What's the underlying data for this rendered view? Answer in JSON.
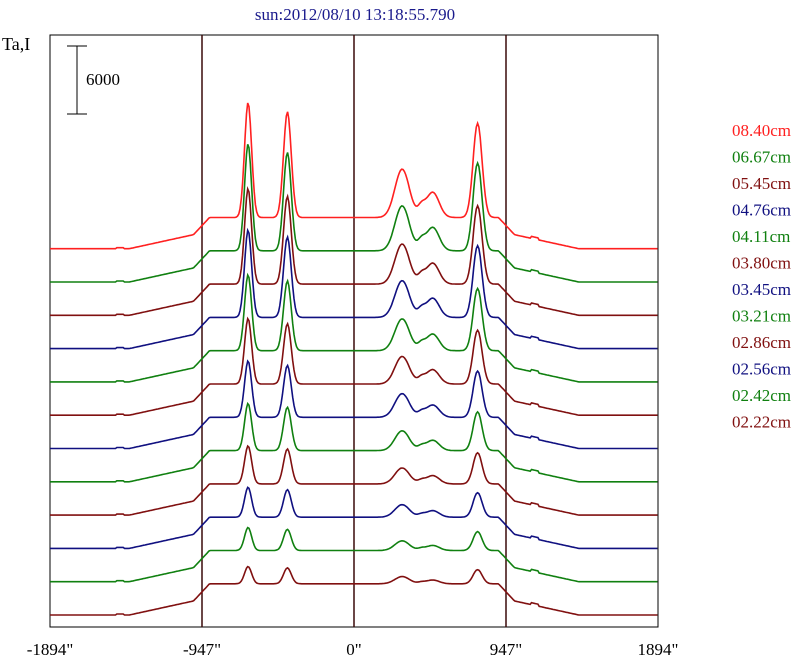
{
  "chart_data": {
    "type": "line",
    "title": "sun:2012/08/10 13:18:55.790",
    "ylabel": "Ta,I",
    "scale_bar_label": "6000",
    "xlim": [
      -1894,
      1894
    ],
    "x_ticks": [
      -1894,
      -947,
      0,
      947,
      1894
    ],
    "x_tick_labels": [
      "-1894\"",
      "-947\"",
      "0\"",
      "947\"",
      "1894\""
    ],
    "vertical_lines": [
      -947,
      0,
      947
    ],
    "series": [
      {
        "name": "08.40cm",
        "color": "#ff2020",
        "offset": 11,
        "amplitude": 1.0
      },
      {
        "name": "06.67cm",
        "color": "#108010",
        "offset": 10,
        "amplitude": 0.93
      },
      {
        "name": "05.45cm",
        "color": "#801010",
        "offset": 9,
        "amplitude": 0.83
      },
      {
        "name": "04.76cm",
        "color": "#101080",
        "offset": 8,
        "amplitude": 0.76
      },
      {
        "name": "04.11cm",
        "color": "#108010",
        "offset": 7,
        "amplitude": 0.66
      },
      {
        "name": "03.80cm",
        "color": "#801010",
        "offset": 6,
        "amplitude": 0.57
      },
      {
        "name": "03.45cm",
        "color": "#101080",
        "offset": 5,
        "amplitude": 0.49
      },
      {
        "name": "03.21cm",
        "color": "#108010",
        "offset": 4,
        "amplitude": 0.41
      },
      {
        "name": "02.86cm",
        "color": "#801010",
        "offset": 3,
        "amplitude": 0.33
      },
      {
        "name": "02.56cm",
        "color": "#101080",
        "offset": 2,
        "amplitude": 0.26
      },
      {
        "name": "02.42cm",
        "color": "#108010",
        "offset": 1,
        "amplitude": 0.2
      },
      {
        "name": "02.22cm",
        "color": "#801010",
        "offset": 0,
        "amplitude": 0.15
      }
    ],
    "grid": false,
    "legend_position": "right"
  }
}
